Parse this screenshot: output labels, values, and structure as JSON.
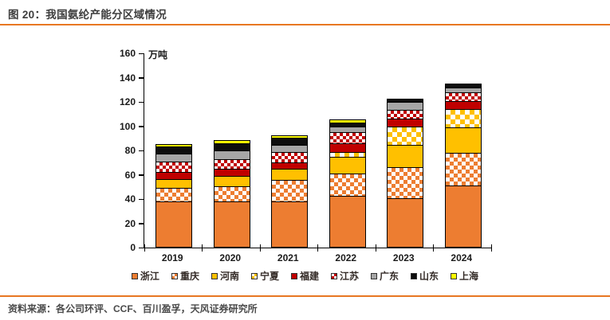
{
  "header": {
    "title": "图 20：我国氨纶产能分区域情况"
  },
  "footer": {
    "source": "资料来源：各公司环评、CCF、百川盈孚，天风证券研究所"
  },
  "colors": {
    "accent_rule": "#E87722",
    "axis": "#000000",
    "zhejiang_orange": "#ED7D31",
    "henan_gold": "#FFC000",
    "fujian_darkred": "#C00000",
    "guangdong_gray": "#A6A6A6",
    "shandong_black": "#0D0D0D",
    "shanghai_yellow": "#FFFF00"
  },
  "chart_data": {
    "type": "bar",
    "stacked": true,
    "title": "我国氨纶产能分区域情况",
    "unit_label": "万吨",
    "xlabel": "",
    "ylabel": "万吨",
    "ylim": [
      0,
      160
    ],
    "yticks": [
      0,
      20,
      40,
      60,
      80,
      100,
      120,
      140,
      160
    ],
    "grid": false,
    "legend_position": "bottom",
    "categories": [
      "2019",
      "2020",
      "2021",
      "2022",
      "2023",
      "2024"
    ],
    "series": [
      {
        "name": "浙江",
        "pattern": "solid",
        "color": "#ED7D31",
        "tile": 10,
        "values": [
          37,
          36.5,
          37,
          41.5,
          39,
          49.5
        ]
      },
      {
        "name": "重庆",
        "pattern": "checker",
        "color": "#ED7D31",
        "tile": 10,
        "values": [
          11,
          12.5,
          17.5,
          18,
          26,
          27.5
        ]
      },
      {
        "name": "河南",
        "pattern": "solid",
        "color": "#FFC000",
        "tile": 10,
        "values": [
          7,
          8.5,
          9,
          14,
          18.5,
          21
        ]
      },
      {
        "name": "宁夏",
        "pattern": "checker",
        "color": "#FFC000",
        "tile": 12,
        "values": [
          0,
          0,
          0,
          4,
          15,
          15
        ]
      },
      {
        "name": "福建",
        "pattern": "solid",
        "color": "#C00000",
        "tile": 10,
        "values": [
          6,
          6,
          5.5,
          7,
          6.5,
          6.5
        ]
      },
      {
        "name": "江苏",
        "pattern": "checker",
        "color": "#C00000",
        "tile": 8,
        "values": [
          8.5,
          8,
          8.5,
          9.5,
          7,
          7
        ]
      },
      {
        "name": "广东",
        "pattern": "solid",
        "color": "#A6A6A6",
        "tile": 10,
        "values": [
          6.5,
          7,
          5.5,
          4.5,
          6.5,
          4
        ]
      },
      {
        "name": "山东",
        "pattern": "solid",
        "color": "#0D0D0D",
        "tile": 10,
        "values": [
          6,
          6,
          6,
          3,
          3,
          3.5
        ]
      },
      {
        "name": "上海",
        "pattern": "solid",
        "color": "#FFFF00",
        "tile": 10,
        "values": [
          2,
          2.5,
          2,
          2.5,
          0,
          0
        ]
      }
    ],
    "totals": [
      84,
      87,
      91,
      104,
      121.5,
      134
    ]
  }
}
